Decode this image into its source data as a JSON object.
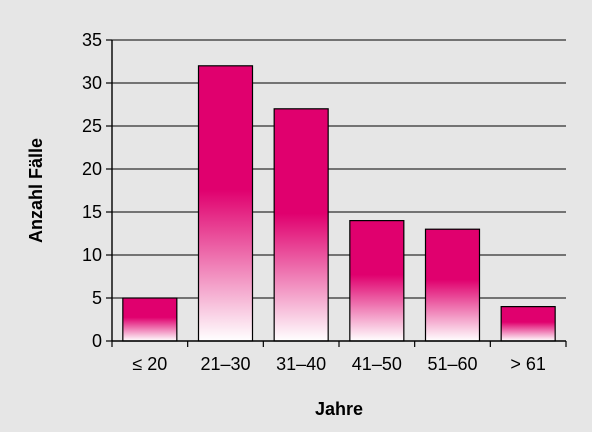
{
  "chart_data": {
    "type": "bar",
    "title": "",
    "xlabel": "Jahre",
    "ylabel": "Anzahl Fälle",
    "categories": [
      "≤ 20",
      "21–30",
      "31–40",
      "41–50",
      "51–60",
      "> 61"
    ],
    "values": [
      5,
      32,
      27,
      14,
      13,
      4
    ],
    "ylim": [
      0,
      35
    ],
    "yticks": [
      0,
      5,
      10,
      15,
      20,
      25,
      30,
      35
    ],
    "grid": true,
    "colors": {
      "background": "#e6e6e6",
      "plot_background": "#e6e6e6",
      "bar_top": "#e0006e",
      "bar_bottom": "#ffffff",
      "grid": "#000000"
    }
  }
}
